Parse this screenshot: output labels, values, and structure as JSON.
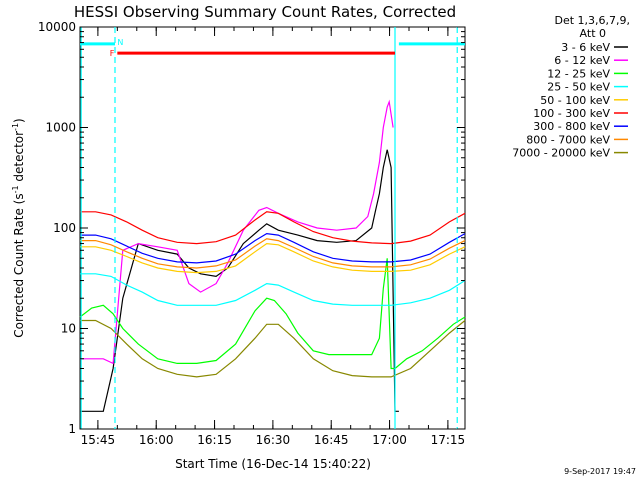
{
  "chart_data": {
    "type": "line",
    "title": "HESSI Observing Summary Count Rates, Corrected",
    "xlabel": "Start Time (16-Dec-14 15:40:22)",
    "ylabel": "Corrected Count Rate (s⁻¹ detector⁻¹)",
    "ylabel_main": "Corrected Count Rate (s",
    "ylabel_sup1": "-1",
    "ylabel_mid": " detector",
    "ylabel_sup2": "-1",
    "ylabel_end": ")",
    "yscale": "log",
    "ylim": [
      1,
      10000
    ],
    "xlim_minutes": [
      0,
      99
    ],
    "x_ticks": [
      {
        "label": "15:45",
        "m": 4.6
      },
      {
        "label": "16:00",
        "m": 19.6
      },
      {
        "label": "16:15",
        "m": 34.6
      },
      {
        "label": "16:30",
        "m": 49.6
      },
      {
        "label": "16:45",
        "m": 64.6
      },
      {
        "label": "17:00",
        "m": 79.6
      },
      {
        "label": "17:15",
        "m": 94.6
      }
    ],
    "y_ticks": [
      {
        "label": "1",
        "v": 1
      },
      {
        "label": "10",
        "v": 10
      },
      {
        "label": "100",
        "v": 100
      },
      {
        "label": "1000",
        "v": 1000
      },
      {
        "label": "10000",
        "v": 10000
      }
    ],
    "legend_header": [
      "Det 1,3,6,7,9,",
      "Att 0"
    ],
    "series": [
      {
        "name": "3 - 6 keV",
        "color": "#000000",
        "x": [
          0,
          3,
          6,
          8.5,
          11,
          15,
          20,
          25,
          28,
          31,
          35,
          38,
          42,
          46,
          48,
          51,
          56,
          61,
          66,
          71,
          75,
          76,
          77,
          78,
          79,
          80,
          81,
          82
        ],
        "y": [
          1.5,
          1.5,
          1.5,
          4,
          20,
          70,
          60,
          55,
          40,
          35,
          33,
          40,
          70,
          95,
          110,
          95,
          85,
          75,
          72,
          75,
          100,
          150,
          220,
          400,
          600,
          400,
          1.5,
          1.5
        ]
      },
      {
        "name": "6 - 12 keV",
        "color": "#ff00ff",
        "x": [
          0,
          3,
          6,
          8.5,
          11,
          15,
          20,
          25,
          28,
          31,
          35,
          38,
          42,
          46,
          48,
          51,
          56,
          61,
          66,
          71,
          74,
          75.5,
          77,
          78,
          79,
          79.5,
          80.5
        ],
        "y": [
          5,
          5,
          5,
          4.5,
          60,
          70,
          65,
          60,
          28,
          23,
          28,
          45,
          95,
          150,
          160,
          140,
          115,
          100,
          95,
          100,
          130,
          220,
          450,
          1000,
          1600,
          1800,
          1000
        ]
      },
      {
        "name": "12 - 25 keV",
        "color": "#00ff00",
        "x": [
          0,
          3,
          6,
          8.5,
          11,
          15,
          20,
          25,
          30,
          35,
          40,
          45,
          48,
          50,
          53,
          56,
          60,
          64,
          68,
          72,
          75,
          77,
          78,
          79,
          80,
          81,
          84,
          88,
          92,
          96,
          99
        ],
        "y": [
          13,
          16,
          17,
          14,
          10,
          7,
          5,
          4.5,
          4.5,
          4.8,
          7,
          15,
          20,
          19,
          14,
          9,
          6,
          5.5,
          5.5,
          5.5,
          5.5,
          8,
          25,
          50,
          4,
          4,
          5,
          6,
          8,
          11,
          13
        ]
      },
      {
        "name": "25 - 50 keV",
        "color": "#00ffff",
        "x": [
          0,
          4,
          8,
          12,
          16,
          20,
          25,
          30,
          35,
          40,
          45,
          48,
          51,
          55,
          60,
          65,
          70,
          75,
          80,
          85,
          90,
          95,
          99
        ],
        "y": [
          35,
          35,
          33,
          27,
          23,
          19,
          17,
          17,
          17,
          19,
          24,
          28,
          27,
          23,
          19,
          17.5,
          17,
          17,
          17,
          18,
          20,
          24,
          30
        ]
      },
      {
        "name": "50 - 100 keV",
        "color": "#ffcc00",
        "x": [
          0,
          4,
          8,
          12,
          16,
          20,
          25,
          30,
          35,
          40,
          45,
          48,
          51,
          55,
          60,
          65,
          70,
          75,
          80,
          85,
          90,
          95,
          99
        ],
        "y": [
          65,
          65,
          60,
          52,
          45,
          40,
          37,
          36,
          37,
          42,
          58,
          70,
          68,
          58,
          47,
          41,
          38,
          37,
          37,
          38,
          43,
          55,
          65
        ]
      },
      {
        "name": "100 - 300 keV",
        "color": "#ff0000",
        "x": [
          0,
          4,
          8,
          12,
          16,
          20,
          25,
          30,
          35,
          40,
          45,
          48,
          51,
          55,
          60,
          65,
          70,
          75,
          80,
          85,
          90,
          95,
          99
        ],
        "y": [
          145,
          145,
          135,
          115,
          95,
          80,
          72,
          70,
          73,
          85,
          120,
          145,
          140,
          115,
          92,
          80,
          74,
          71,
          70,
          74,
          85,
          115,
          140
        ]
      },
      {
        "name": "300 - 800 keV",
        "color": "#0000ff",
        "x": [
          0,
          4,
          8,
          12,
          16,
          20,
          25,
          30,
          35,
          40,
          45,
          48,
          51,
          55,
          60,
          65,
          70,
          75,
          80,
          85,
          90,
          95,
          99
        ],
        "y": [
          85,
          85,
          78,
          66,
          56,
          50,
          46,
          45,
          47,
          55,
          75,
          88,
          85,
          72,
          58,
          50,
          47,
          46,
          46,
          48,
          55,
          72,
          88
        ]
      },
      {
        "name": "800 - 7000 keV",
        "color": "#ff8800",
        "x": [
          0,
          4,
          8,
          12,
          16,
          20,
          25,
          30,
          35,
          40,
          45,
          48,
          51,
          55,
          60,
          65,
          70,
          75,
          80,
          85,
          90,
          95,
          99
        ],
        "y": [
          75,
          75,
          68,
          58,
          50,
          44,
          41,
          40,
          42,
          48,
          66,
          78,
          75,
          64,
          52,
          45,
          42,
          41,
          41,
          43,
          49,
          63,
          75
        ]
      },
      {
        "name": "7000 - 20000 keV",
        "color": "#888800",
        "x": [
          0,
          4,
          8,
          12,
          16,
          20,
          25,
          30,
          35,
          40,
          45,
          48,
          51,
          55,
          60,
          65,
          70,
          75,
          80,
          85,
          90,
          95,
          99
        ],
        "y": [
          12,
          12,
          10,
          7,
          5,
          4,
          3.5,
          3.3,
          3.5,
          5,
          8,
          11,
          11,
          8,
          5,
          3.8,
          3.4,
          3.3,
          3.3,
          4,
          6,
          9,
          12
        ]
      }
    ],
    "night_bars": [
      {
        "label": "N",
        "x0": 0,
        "x1": 9,
        "y": 6800,
        "color": "#00ffff",
        "label_m": 9.6
      },
      {
        "x0": 82,
        "x1": 99,
        "y": 6800,
        "color": "#00ffff"
      }
    ],
    "flare_bar": {
      "label": "F",
      "x0": 9.6,
      "x1": 81,
      "y": 5500,
      "color": "#ff0000"
    },
    "vertical_markers": [
      {
        "m": 9,
        "color": "#00ffff",
        "style": "dashed"
      },
      {
        "m": 81,
        "color": "#00ffff",
        "style": "solid"
      },
      {
        "m": 97,
        "color": "#00ffff",
        "style": "dashed"
      },
      {
        "m": 0.3,
        "color": "#00ffff",
        "style": "solid"
      }
    ],
    "timestamp": "9-Sep-2017 19:47"
  }
}
